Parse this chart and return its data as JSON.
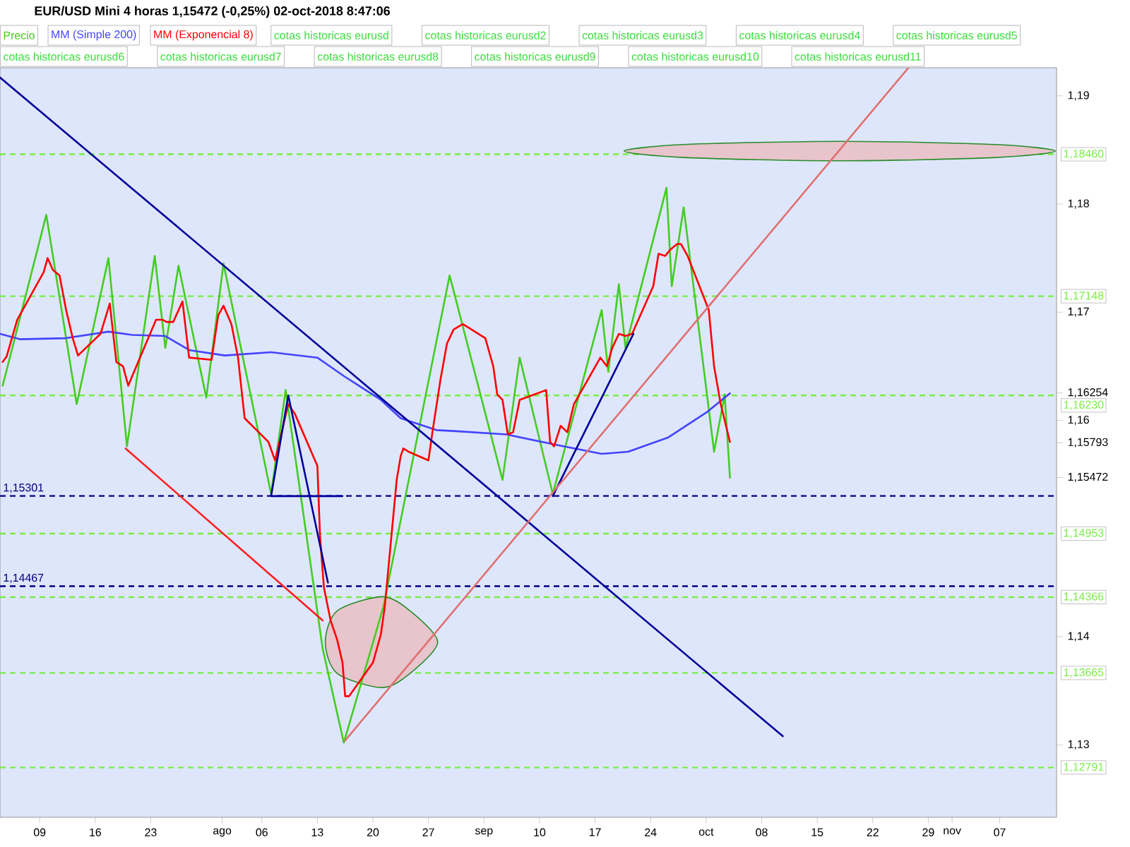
{
  "chart_data": {
    "type": "line",
    "title": "EUR/USD Mini   4 horas   1,15472 (-0,25%)   02-oct-2018 8:47:06",
    "xlim": [
      "2018-07-04",
      "2018-11-14T04:00"
    ],
    "ylim": [
      1.1233,
      1.1926
    ],
    "xticks": [
      {
        "value": "2018-07-09",
        "label": "09"
      },
      {
        "value": "2018-07-16",
        "label": "16"
      },
      {
        "value": "2018-07-23",
        "label": "23"
      },
      {
        "value": "2018-08-01",
        "label": "ago"
      },
      {
        "value": "2018-08-06",
        "label": "06"
      },
      {
        "value": "2018-08-13",
        "label": "13"
      },
      {
        "value": "2018-08-20",
        "label": "20"
      },
      {
        "value": "2018-08-27",
        "label": "27"
      },
      {
        "value": "2018-09-03",
        "label": "sep"
      },
      {
        "value": "2018-09-10",
        "label": "10"
      },
      {
        "value": "2018-09-17",
        "label": "17"
      },
      {
        "value": "2018-09-24",
        "label": "24"
      },
      {
        "value": "2018-10-01",
        "label": "oct"
      },
      {
        "value": "2018-10-08",
        "label": "08"
      },
      {
        "value": "2018-10-15",
        "label": "15"
      },
      {
        "value": "2018-10-22",
        "label": "22"
      },
      {
        "value": "2018-10-29",
        "label": "29"
      },
      {
        "value": "2018-11-01",
        "label": "nov"
      },
      {
        "value": "2018-11-07",
        "label": "07"
      }
    ],
    "yticks": [
      {
        "value": 1.13,
        "label": "1,13"
      },
      {
        "value": 1.14,
        "label": "1,14"
      },
      {
        "value": 1.15472,
        "label": "1,15472"
      },
      {
        "value": 1.15793,
        "label": "1,15793"
      },
      {
        "value": 1.16,
        "label": "1,16"
      },
      {
        "value": 1.16254,
        "label": "1,16254"
      },
      {
        "value": 1.17,
        "label": "1,17"
      },
      {
        "value": 1.18,
        "label": "1,18"
      },
      {
        "value": 1.19,
        "label": "1,19"
      }
    ],
    "legend": "top left",
    "series": [
      {
        "name": "Precio",
        "color": "#44cc22",
        "x": [
          "2018-07-04T08:00",
          "2018-07-09T20:00",
          "2018-07-13T16:00",
          "2018-07-17T16:00",
          "2018-07-20T00:00",
          "2018-07-23T12:00",
          "2018-07-24T20:00",
          "2018-07-26T12:00",
          "2018-07-30T00:00",
          "2018-08-01T04:00",
          "2018-08-07T04:00",
          "2018-08-09T00:00",
          "2018-08-13T16:00",
          "2018-08-16T08:00",
          "2018-08-21T08:00",
          "2018-08-29T16:00",
          "2018-09-05T08:00",
          "2018-09-07T12:00",
          "2018-09-11T16:00",
          "2018-09-17T20:00",
          "2018-09-18T16:00",
          "2018-09-20T00:00",
          "2018-09-20T20:00",
          "2018-09-26T00:00",
          "2018-09-26T16:00",
          "2018-09-28T04:00",
          "2018-10-02T00:00",
          "2018-10-03T08:00",
          "2018-10-04T00:00"
        ],
        "values": [
          1.1632,
          1.179,
          1.1615,
          1.175,
          1.1576,
          1.1752,
          1.1667,
          1.1743,
          1.1621,
          1.1745,
          1.1532,
          1.1628,
          1.1389,
          1.1302,
          1.1428,
          1.1734,
          1.1545,
          1.1658,
          1.1532,
          1.1702,
          1.1645,
          1.1726,
          1.1667,
          1.1815,
          1.1724,
          1.1797,
          1.1571,
          1.1624,
          1.1547
        ]
      },
      {
        "name": "MM (Simple 200)",
        "color": "#4444ff",
        "x": [
          "2018-07-04T00:00",
          "2018-07-06T12:00",
          "2018-07-12T08:00",
          "2018-07-17T16:00",
          "2018-07-20T16:00",
          "2018-07-24T20:00",
          "2018-07-27T20:00",
          "2018-08-01T08:00",
          "2018-08-07T04:00",
          "2018-08-13T00:00",
          "2018-08-16T08:00",
          "2018-08-21T00:00",
          "2018-08-23T12:00",
          "2018-08-28T00:00",
          "2018-08-30T12:00",
          "2018-09-05T20:00",
          "2018-09-11T16:00",
          "2018-09-17T20:00",
          "2018-09-21T04:00",
          "2018-09-26T04:00",
          "2018-10-01T04:00",
          "2018-10-03T08:00",
          "2018-10-04T00:00"
        ],
        "values": [
          1.168,
          1.1675,
          1.1676,
          1.1682,
          1.1679,
          1.1678,
          1.1665,
          1.166,
          1.1663,
          1.1658,
          1.1641,
          1.1619,
          1.1602,
          1.1591,
          1.159,
          1.1587,
          1.1578,
          1.1569,
          1.1571,
          1.1584,
          1.1608,
          1.1621,
          1.1625
        ]
      },
      {
        "name": "MM (Exponencial 8)",
        "color": "#ff0000",
        "x": [
          "2018-07-04T08:00",
          "2018-07-04T20:00",
          "2018-07-06T04:00",
          "2018-07-09T12:00",
          "2018-07-10T00:00",
          "2018-07-10T16:00",
          "2018-07-11T12:00",
          "2018-07-12T08:00",
          "2018-07-13T04:00",
          "2018-07-13T20:00",
          "2018-07-16T16:00",
          "2018-07-17T20:00",
          "2018-07-18T16:00",
          "2018-07-19T12:00",
          "2018-07-20T04:00",
          "2018-07-20T16:00",
          "2018-07-23T16:00",
          "2018-07-24T12:00",
          "2018-07-25T00:00",
          "2018-07-25T20:00",
          "2018-07-27T00:00",
          "2018-07-27T20:00",
          "2018-07-30T16:00",
          "2018-07-31T12:00",
          "2018-08-01T04:00",
          "2018-08-02T04:00",
          "2018-08-03T00:00",
          "2018-08-03T20:00",
          "2018-08-06T20:00",
          "2018-08-07T16:00",
          "2018-08-09T08:00",
          "2018-08-10T04:00",
          "2018-08-13T00:00",
          "2018-08-13T08:00",
          "2018-08-13T20:00",
          "2018-08-14T16:00",
          "2018-08-15T12:00",
          "2018-08-16T04:00",
          "2018-08-16T12:00",
          "2018-08-17T00:00",
          "2018-08-20T00:00",
          "2018-08-21T00:00",
          "2018-08-21T12:00",
          "2018-08-22T04:00",
          "2018-08-23T00:00",
          "2018-08-23T12:00",
          "2018-08-23T20:00",
          "2018-08-24T12:00",
          "2018-08-27T00:00",
          "2018-08-27T12:00",
          "2018-08-28T12:00",
          "2018-08-29T08:00",
          "2018-08-30T04:00",
          "2018-08-31T08:00",
          "2018-09-03T04:00",
          "2018-09-04T04:00",
          "2018-09-04T16:00",
          "2018-09-05T08:00",
          "2018-09-06T00:00",
          "2018-09-06T16:00",
          "2018-09-07T12:00",
          "2018-09-10T20:00",
          "2018-09-11T08:00",
          "2018-09-11T20:00",
          "2018-09-12T16:00",
          "2018-09-13T12:00",
          "2018-09-14T08:00",
          "2018-09-17T16:00",
          "2018-09-18T12:00",
          "2018-09-19T04:00",
          "2018-09-20T00:00",
          "2018-09-20T20:00",
          "2018-09-21T16:00",
          "2018-09-24T08:00",
          "2018-09-25T00:00",
          "2018-09-25T20:00",
          "2018-09-26T12:00",
          "2018-09-27T08:00",
          "2018-09-27T20:00",
          "2018-09-28T16:00",
          "2018-10-01T08:00",
          "2018-10-02T00:00",
          "2018-10-02T20:00",
          "2018-10-04T00:00"
        ],
        "values": [
          1.1654,
          1.1659,
          1.1693,
          1.1737,
          1.175,
          1.1739,
          1.1734,
          1.1702,
          1.1676,
          1.166,
          1.168,
          1.1708,
          1.1654,
          1.165,
          1.1632,
          1.1641,
          1.1693,
          1.1693,
          1.1691,
          1.1691,
          1.171,
          1.1658,
          1.1656,
          1.1697,
          1.1706,
          1.1689,
          1.1658,
          1.1602,
          1.158,
          1.1563,
          1.1615,
          1.1606,
          1.1558,
          1.1493,
          1.1445,
          1.1415,
          1.1397,
          1.1376,
          1.1345,
          1.1345,
          1.1376,
          1.1402,
          1.1428,
          1.148,
          1.1545,
          1.1567,
          1.1574,
          1.1571,
          1.1563,
          1.1589,
          1.1637,
          1.1671,
          1.1684,
          1.1689,
          1.1676,
          1.165,
          1.1624,
          1.1619,
          1.1587,
          1.1589,
          1.1619,
          1.1628,
          1.158,
          1.1576,
          1.1595,
          1.1589,
          1.1615,
          1.1658,
          1.165,
          1.1667,
          1.168,
          1.1678,
          1.168,
          1.1724,
          1.1754,
          1.1752,
          1.1758,
          1.1763,
          1.1763,
          1.1752,
          1.1702,
          1.165,
          1.1615,
          1.158
        ]
      },
      {
        "type": "line",
        "color": "#000099",
        "x": [
          "2018-07-04T00:00",
          "2018-10-10T16:00"
        ],
        "values": [
          1.1917,
          1.1308
        ]
      },
      {
        "type": "line",
        "color": "#ff2020",
        "x": [
          "2018-07-19T20:00",
          "2018-08-13T16:00"
        ],
        "values": [
          1.1574,
          1.1415
        ]
      },
      {
        "type": "line",
        "color": "#000099",
        "x": [
          "2018-08-16T04:00",
          "2018-08-07T04:00",
          "2018-08-09T08:00",
          "2018-08-14T08:00"
        ],
        "values": [
          1.153,
          1.153,
          1.1623,
          1.145
        ]
      },
      {
        "type": "line",
        "color": "#000099",
        "x": [
          "2018-09-11T16:00",
          "2018-09-21T20:00"
        ],
        "values": [
          1.153,
          1.168
        ]
      },
      {
        "type": "line",
        "color": "#e07070",
        "x": [
          "2018-08-16T12:00",
          "2018-10-26T12:00"
        ],
        "values": [
          1.1304,
          1.1926
        ]
      },
      {
        "type": "area",
        "color": "#e8c4cc",
        "x": [
          "2018-11-14T00:00",
          "2018-11-06T12:00",
          "2018-10-17T20:00",
          "2018-09-28T04:00",
          "2018-09-20T16:00",
          "2018-09-28T04:00",
          "2018-10-17T20:00",
          "2018-11-06T12:00"
        ],
        "values": [
          1.1849,
          1.1855,
          1.1858,
          1.1855,
          1.1849,
          1.1843,
          1.184,
          1.1843
        ]
      },
      {
        "type": "area",
        "color": "#e8c4cc",
        "x": [
          "2018-08-28T04:00",
          "2018-08-24T16:00",
          "2018-08-21T04:00",
          "2018-08-15T12:00",
          "2018-08-14T00:00",
          "2018-08-15T12:00",
          "2018-08-21T04:00",
          "2018-08-24T16:00"
        ],
        "values": [
          1.1395,
          1.1424,
          1.1437,
          1.1424,
          1.1395,
          1.1366,
          1.1353,
          1.1366
        ]
      }
    ],
    "ref_lines": [
      {
        "axis": "y",
        "value": 1.1846,
        "label": "1,18460",
        "color": "#77ee44",
        "line_style": "dashed"
      },
      {
        "axis": "y",
        "value": 1.17148,
        "label": "1,17148",
        "color": "#77ee44",
        "line_style": "dashed"
      },
      {
        "axis": "y",
        "value": 1.1623,
        "label": "1,16230",
        "color": "#77ee44",
        "line_style": "dashed"
      },
      {
        "axis": "y",
        "value": 1.15301,
        "label": "1,15301",
        "color": "#000080",
        "line_style": "dashed"
      },
      {
        "axis": "y",
        "value": 1.14953,
        "label": "1,14953",
        "color": "#77ee44",
        "line_style": "dashed"
      },
      {
        "axis": "y",
        "value": 1.14467,
        "label": "1,14467",
        "color": "#000080",
        "line_style": "dashed"
      },
      {
        "axis": "y",
        "value": 1.14366,
        "label": "1,14366",
        "color": "#77ee44",
        "line_style": "dashed"
      },
      {
        "axis": "y",
        "value": 1.13665,
        "label": "1,13665",
        "color": "#77ee44",
        "line_style": "dashed"
      },
      {
        "axis": "y",
        "value": 1.12791,
        "label": "1,12791",
        "color": "#77ee44",
        "line_style": "dashed"
      }
    ],
    "annotations": [
      "cotas historicas eurusd",
      "cotas historicas eurusd2",
      "cotas historicas eurusd3",
      "cotas historicas eurusd4",
      "cotas historicas eurusd5",
      "cotas historicas eurusd6",
      "cotas historicas eurusd7",
      "cotas historicas eurusd8",
      "cotas historicas eurusd9",
      "cotas historicas eurusd10",
      "cotas historicas eurusd11"
    ]
  }
}
